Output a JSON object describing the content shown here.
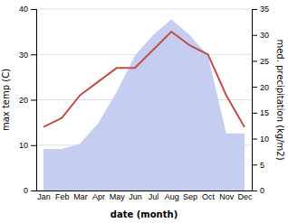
{
  "chart_data": {
    "type": "line",
    "categories": [
      "Jan",
      "Feb",
      "Mar",
      "Apr",
      "May",
      "Jun",
      "Jul",
      "Aug",
      "Sep",
      "Oct",
      "Nov",
      "Dec"
    ],
    "series": [
      {
        "type": "area",
        "axis": "y2",
        "color": "#c5cdf0",
        "values": [
          8,
          8,
          9,
          13,
          19,
          26,
          30,
          33,
          30,
          26,
          11,
          11
        ]
      },
      {
        "type": "line",
        "color": "#c0504d",
        "values": [
          14,
          16,
          21,
          24,
          27,
          27,
          31,
          35,
          32,
          30,
          21,
          14
        ]
      }
    ],
    "xlabel": "date (month)",
    "ylabel": "max temp (C)",
    "y2label": "med. precipitation (kg/m2)",
    "ylim": [
      0,
      40
    ],
    "yticks": [
      0,
      10,
      20,
      30,
      40
    ],
    "y2lim": [
      0,
      35
    ],
    "y2ticks": [
      0,
      5,
      10,
      15,
      20,
      25,
      30,
      35
    ],
    "grid": true
  }
}
